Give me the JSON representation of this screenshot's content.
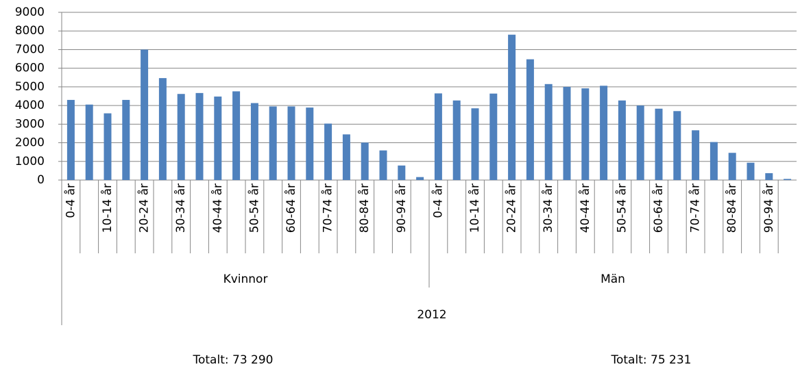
{
  "chart_data": {
    "type": "bar",
    "categories": [
      "0-4 år",
      null,
      "10-14 år",
      null,
      "20-24 år",
      null,
      "30-34 år",
      null,
      "40-44 år",
      null,
      "50-54 år",
      null,
      "60-64 år",
      null,
      "70-74 år",
      null,
      "80-84 år",
      null,
      "90-94 år",
      null
    ],
    "group_label": "2012",
    "series": [
      {
        "name": "Kvinnor",
        "color": "#4f81bd",
        "values": [
          4300,
          4050,
          3580,
          4300,
          7000,
          5470,
          4620,
          4670,
          4480,
          4760,
          4130,
          3950,
          3950,
          3890,
          3030,
          2450,
          2010,
          1590,
          780,
          160
        ]
      },
      {
        "name": "Män",
        "color": "#4f81bd",
        "values": [
          4650,
          4270,
          3850,
          4640,
          7800,
          6480,
          5150,
          5000,
          4920,
          5060,
          4270,
          4000,
          3830,
          3700,
          2670,
          2040,
          1460,
          930,
          370,
          60
        ]
      }
    ],
    "ylim": [
      0,
      9000
    ],
    "yticks": [
      0,
      1000,
      2000,
      3000,
      4000,
      5000,
      6000,
      7000,
      8000,
      9000
    ],
    "grid": true,
    "annotations": [
      "Totalt: 73 290",
      "Totalt: 75 231"
    ]
  }
}
